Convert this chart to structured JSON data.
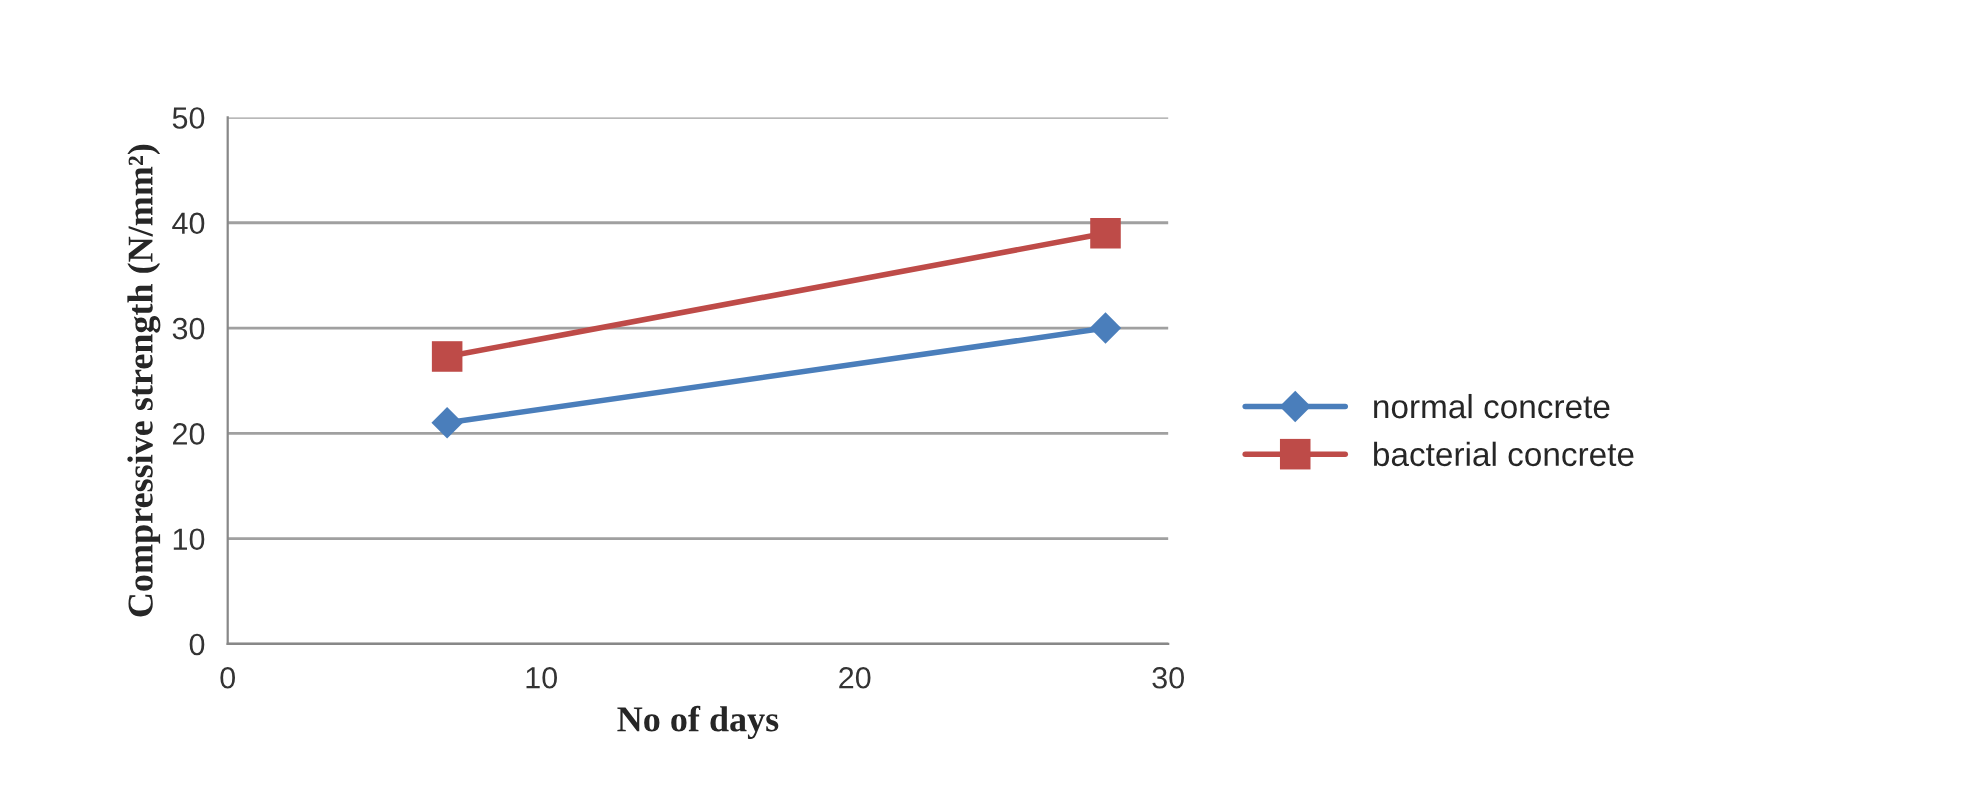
{
  "chart_data": {
    "type": "line",
    "xlabel": "No of days",
    "ylabel": "Compressive strength (N/mm²)",
    "x": [
      7,
      28
    ],
    "series": [
      {
        "name": "normal concrete",
        "color": "#4a7ebb",
        "values": [
          21,
          30
        ],
        "marker": "diamond"
      },
      {
        "name": "bacterial concrete",
        "color": "#be4b48",
        "values": [
          27.3,
          39
        ],
        "marker": "square"
      }
    ],
    "xlim": [
      0,
      30
    ],
    "xticks": [
      0,
      10,
      20,
      30
    ],
    "ylim": [
      0,
      50
    ],
    "yticks": [
      0,
      10,
      20,
      30,
      40,
      50
    ],
    "grid": "y",
    "legend": "right",
    "line_style": "solid"
  }
}
